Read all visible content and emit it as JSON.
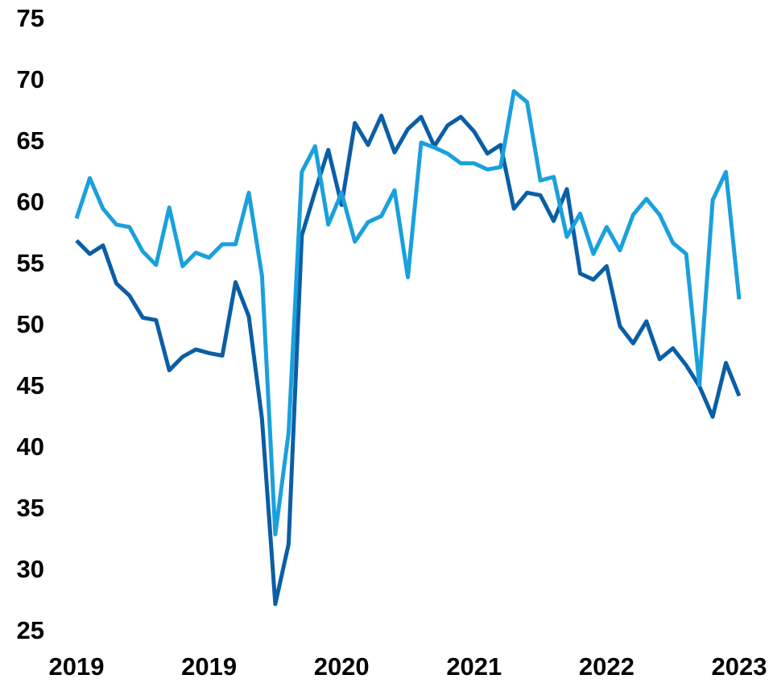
{
  "chart_data": {
    "type": "line",
    "categories": [
      "2019",
      null,
      null,
      null,
      null,
      null,
      null,
      null,
      null,
      null,
      "2019",
      null,
      null,
      null,
      null,
      null,
      null,
      null,
      null,
      null,
      "2020",
      null,
      null,
      null,
      null,
      null,
      null,
      null,
      null,
      null,
      "2021",
      null,
      null,
      null,
      null,
      null,
      null,
      null,
      null,
      null,
      "2022",
      null,
      null,
      null,
      null,
      null,
      null,
      null,
      null,
      null,
      "2023"
    ],
    "series": [
      {
        "color": "#0b5ea5",
        "values": [
          57.0,
          55.9,
          56.6,
          53.5,
          52.5,
          50.7,
          50.5,
          46.4,
          47.5,
          48.1,
          47.8,
          47.6,
          53.6,
          50.8,
          42.4,
          27.3,
          32.2,
          57.4,
          61.0,
          64.4,
          59.9,
          66.6,
          64.8,
          67.2,
          64.2,
          66.1,
          67.1,
          64.7,
          66.4,
          67.1,
          65.9,
          64.1,
          64.8,
          59.6,
          60.9,
          60.7,
          58.6,
          61.2,
          54.3,
          53.8,
          54.9,
          50.0,
          48.6,
          50.4,
          47.3,
          48.2,
          46.8,
          45.1,
          42.6,
          47.0,
          44.3
        ]
      },
      {
        "color": "#1aa0dc",
        "values": [
          58.8,
          62.1,
          59.6,
          58.3,
          58.1,
          56.1,
          55.0,
          59.7,
          54.9,
          56.0,
          55.6,
          56.7,
          56.7,
          60.9,
          54.1,
          33.0,
          41.3,
          62.6,
          64.7,
          58.3,
          60.9,
          56.9,
          58.5,
          59.0,
          61.1,
          54.0,
          65.0,
          64.6,
          64.1,
          63.3,
          63.3,
          62.8,
          63.0,
          69.2,
          68.3,
          61.9,
          62.2,
          57.3,
          59.2,
          55.9,
          58.1,
          56.2,
          59.1,
          60.4,
          59.1,
          56.8,
          55.9,
          45.2,
          60.3,
          62.6,
          52.2
        ]
      }
    ],
    "ylim": [
      25,
      75
    ],
    "yticks": [
      25,
      30,
      35,
      40,
      45,
      50,
      55,
      60,
      65,
      70,
      75
    ],
    "grid": false
  }
}
